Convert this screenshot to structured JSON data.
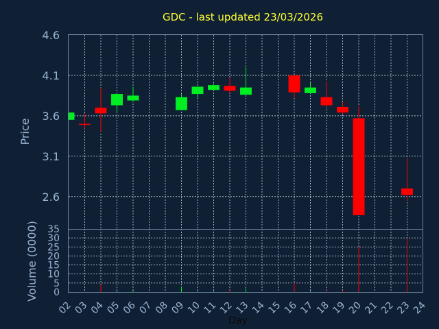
{
  "chart_data": {
    "type": "candlestick",
    "title": "GDC - last updated 23/03/2026",
    "xlabel": "Day",
    "price_ylabel": "Price",
    "volume_ylabel": "Volume (0000)",
    "x_ticks": [
      "02",
      "03",
      "04",
      "05",
      "06",
      "07",
      "08",
      "09",
      "10",
      "11",
      "12",
      "13",
      "14",
      "15",
      "16",
      "17",
      "18",
      "19",
      "20",
      "21",
      "22",
      "23",
      "24"
    ],
    "price_ticks": [
      "4.6",
      "4.1",
      "3.6",
      "3.1",
      "2.6"
    ],
    "volume_ticks": [
      "0",
      "5",
      "10",
      "15",
      "20",
      "25",
      "30",
      "35"
    ],
    "price_ylim": [
      2.2,
      4.6
    ],
    "volume_ylim": [
      0,
      35
    ],
    "colors": {
      "up": "#00ee22",
      "down": "#ff0000",
      "doji": "#ff0000"
    },
    "candles": [
      {
        "day": "02",
        "open": 3.55,
        "high": 3.64,
        "low": 3.55,
        "close": 3.64,
        "volume": 0.1
      },
      {
        "day": "03",
        "open": 3.5,
        "high": 3.63,
        "low": 3.44,
        "close": 3.5,
        "volume": 0.1
      },
      {
        "day": "04",
        "open": 3.7,
        "high": 3.95,
        "low": 3.4,
        "close": 3.63,
        "volume": 4
      },
      {
        "day": "05",
        "open": 3.73,
        "high": 3.88,
        "low": 3.64,
        "close": 3.87,
        "volume": 1
      },
      {
        "day": "06",
        "open": 3.79,
        "high": 3.96,
        "low": 3.77,
        "close": 3.85,
        "volume": 1
      },
      {
        "day": "09",
        "open": 3.67,
        "high": 3.87,
        "low": 3.67,
        "close": 3.83,
        "volume": 3
      },
      {
        "day": "10",
        "open": 3.87,
        "high": 3.96,
        "low": 3.82,
        "close": 3.96,
        "volume": 0.5
      },
      {
        "day": "11",
        "open": 3.92,
        "high": 4.0,
        "low": 3.92,
        "close": 3.98,
        "volume": 0.5
      },
      {
        "day": "12",
        "open": 3.97,
        "high": 4.07,
        "low": 3.88,
        "close": 3.91,
        "volume": 1
      },
      {
        "day": "13",
        "open": 3.86,
        "high": 4.2,
        "low": 3.86,
        "close": 3.95,
        "volume": 2
      },
      {
        "day": "16",
        "open": 4.1,
        "high": 4.1,
        "low": 3.82,
        "close": 3.89,
        "volume": 5
      },
      {
        "day": "17",
        "open": 3.88,
        "high": 4.01,
        "low": 3.88,
        "close": 3.95,
        "volume": 0.5
      },
      {
        "day": "18",
        "open": 3.83,
        "high": 4.03,
        "low": 3.71,
        "close": 3.73,
        "volume": 1
      },
      {
        "day": "19",
        "open": 3.71,
        "high": 3.77,
        "low": 3.62,
        "close": 3.64,
        "volume": 1
      },
      {
        "day": "20",
        "open": 3.57,
        "high": 3.72,
        "low": 2.37,
        "close": 2.37,
        "volume": 25
      },
      {
        "day": "23",
        "open": 2.7,
        "high": 3.08,
        "low": 2.55,
        "close": 2.62,
        "volume": 30
      }
    ]
  }
}
